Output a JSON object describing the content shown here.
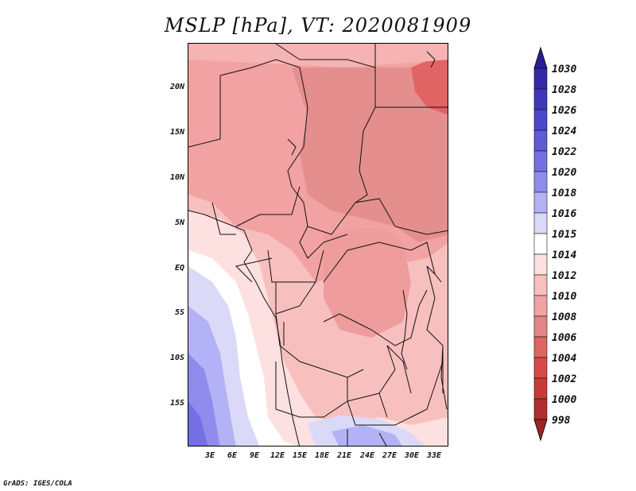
{
  "title": "MSLP [hPa], VT: 2020081909",
  "credit": "GrADS: IGES/COLA",
  "map": {
    "latitude_labels": [
      "20N",
      "15N",
      "10N",
      "5N",
      "EQ",
      "5S",
      "10S",
      "15S"
    ],
    "longitude_labels": [
      "3E",
      "6E",
      "9E",
      "12E",
      "15E",
      "18E",
      "21E",
      "24E",
      "27E",
      "30E",
      "33E"
    ]
  },
  "colorbar": {
    "labels": [
      "1030",
      "1028",
      "1026",
      "1024",
      "1022",
      "1020",
      "1018",
      "1016",
      "1015",
      "1014",
      "1012",
      "1010",
      "1008",
      "1006",
      "1004",
      "1002",
      "1000",
      "998"
    ],
    "colors": [
      "#2a1d9a",
      "#3428aa",
      "#3f36bc",
      "#4c46cc",
      "#5e5ad8",
      "#7470e4",
      "#8f8cee",
      "#b4b2f6",
      "#dadaf8",
      "#ffffff",
      "#fde0e0",
      "#f8bfbf",
      "#f2a2a2",
      "#e38686",
      "#e06464",
      "#d84848",
      "#c83a3a",
      "#b02e2e",
      "#9e2424"
    ]
  },
  "colors": {
    "high_pressure": "#2a1d9a",
    "low_pressure": "#9e2424",
    "neutral": "#ffffff"
  }
}
